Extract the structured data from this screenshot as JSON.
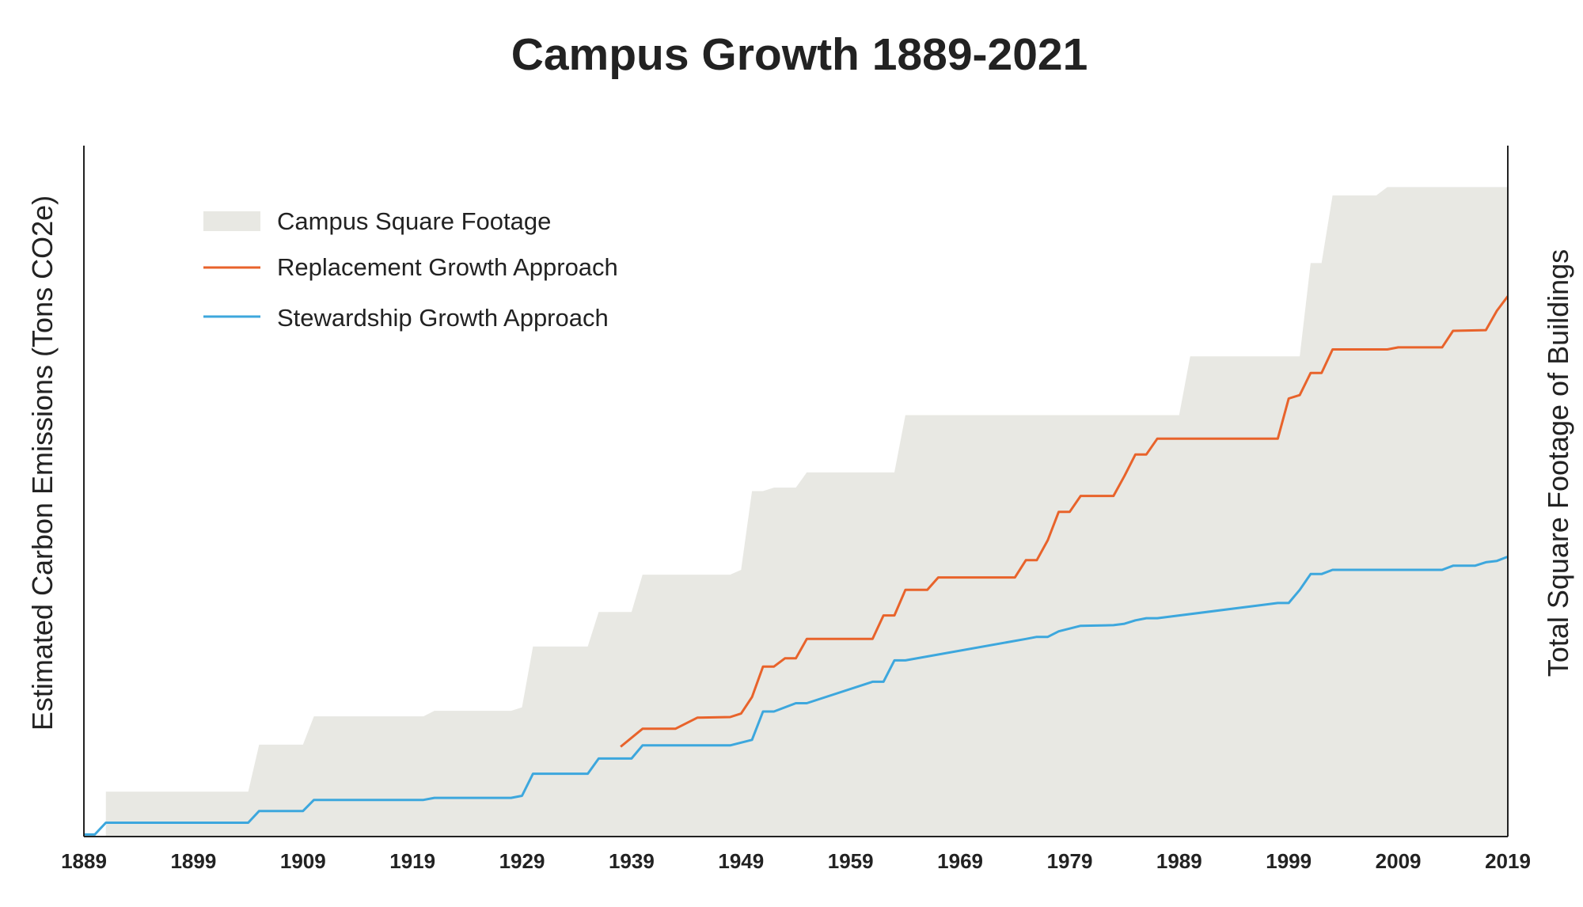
{
  "chart_data": {
    "type": "area",
    "title": "Campus Growth 1889-2021",
    "ylabel_left": "Estimated Carbon Emissions (Tons CO2e)",
    "ylabel_right": "Total Square Footage of Buildings",
    "xlabel": "",
    "x_ticks": [
      "1889",
      "1899",
      "1909",
      "1919",
      "1929",
      "1939",
      "1949",
      "1959",
      "1969",
      "1979",
      "1989",
      "1999",
      "2009",
      "2019"
    ],
    "xlim": [
      1889,
      2019
    ],
    "ylim": [
      0,
      100
    ],
    "grid": false,
    "legend_position": "top-left",
    "colors": {
      "campus": "#e8e8e3",
      "replacement": "#e8632b",
      "stewardship": "#3da7dd",
      "axis": "#222222",
      "text": "#222222"
    },
    "series": [
      {
        "name": "Campus Square Footage",
        "kind": "area",
        "x": [
          1889,
          1891,
          1891.01,
          1904,
          1905,
          1909,
          1910,
          1920,
          1921,
          1928,
          1929,
          1930,
          1935,
          1936,
          1939,
          1940,
          1948,
          1949,
          1950,
          1951,
          1952,
          1954,
          1955,
          1963,
          1964,
          1989,
          1990,
          2000,
          2001,
          2002,
          2003,
          2007,
          2008,
          2019
        ],
        "y": [
          0,
          0,
          6.5,
          6.5,
          13.3,
          13.3,
          17.4,
          17.4,
          18.2,
          18.2,
          18.7,
          27.5,
          27.5,
          32.5,
          32.5,
          37.9,
          37.9,
          38.6,
          50.0,
          50.0,
          50.5,
          50.5,
          52.7,
          52.7,
          61.0,
          61.0,
          69.5,
          69.5,
          83.0,
          83.0,
          92.8,
          92.8,
          94.0,
          94.0
        ]
      },
      {
        "name": "Replacement Growth Approach",
        "kind": "line",
        "x": [
          1938,
          1940,
          1943,
          1945,
          1948,
          1949,
          1950,
          1951,
          1952,
          1953,
          1954,
          1955,
          1961,
          1962,
          1963,
          1964,
          1966,
          1967,
          1974,
          1975,
          1976,
          1977,
          1978,
          1979,
          1980,
          1983,
          1984,
          1985,
          1986,
          1987,
          1988,
          1998,
          1999,
          2000,
          2001,
          2002,
          2003,
          2008,
          2009,
          2013,
          2014,
          2017,
          2018,
          2019
        ],
        "y": [
          13.0,
          15.6,
          15.6,
          17.2,
          17.3,
          17.8,
          20.2,
          24.6,
          24.6,
          25.8,
          25.8,
          28.6,
          28.6,
          32.0,
          32.0,
          35.7,
          35.7,
          37.5,
          37.5,
          40.0,
          40.0,
          42.9,
          47.0,
          47.0,
          49.3,
          49.3,
          52.2,
          55.3,
          55.3,
          57.6,
          57.6,
          57.6,
          63.4,
          63.9,
          67.1,
          67.1,
          70.5,
          70.5,
          70.8,
          70.8,
          73.2,
          73.3,
          76.1,
          78.2
        ]
      },
      {
        "name": "Stewardship Growth Approach",
        "kind": "line",
        "x": [
          1889,
          1890,
          1891,
          1904,
          1905,
          1909,
          1910,
          1920,
          1921,
          1928,
          1929,
          1930,
          1935,
          1936,
          1939,
          1940,
          1948,
          1949,
          1950,
          1951,
          1952,
          1954,
          1955,
          1961,
          1962,
          1963,
          1964,
          1975,
          1976,
          1977,
          1978,
          1980,
          1983,
          1984,
          1985,
          1986,
          1987,
          1998,
          1999,
          2000,
          2001,
          2002,
          2003,
          2013,
          2014,
          2016,
          2017,
          2018,
          2019
        ],
        "y": [
          0.3,
          0.3,
          2.0,
          2.0,
          3.7,
          3.7,
          5.3,
          5.3,
          5.6,
          5.6,
          5.9,
          9.1,
          9.1,
          11.3,
          11.3,
          13.2,
          13.2,
          13.6,
          14.0,
          18.1,
          18.1,
          19.3,
          19.3,
          22.4,
          22.4,
          25.5,
          25.5,
          28.6,
          28.9,
          28.9,
          29.7,
          30.5,
          30.6,
          30.8,
          31.3,
          31.6,
          31.6,
          33.8,
          33.8,
          35.7,
          38.0,
          38.0,
          38.6,
          38.6,
          39.2,
          39.2,
          39.7,
          39.9,
          40.5
        ]
      }
    ]
  }
}
